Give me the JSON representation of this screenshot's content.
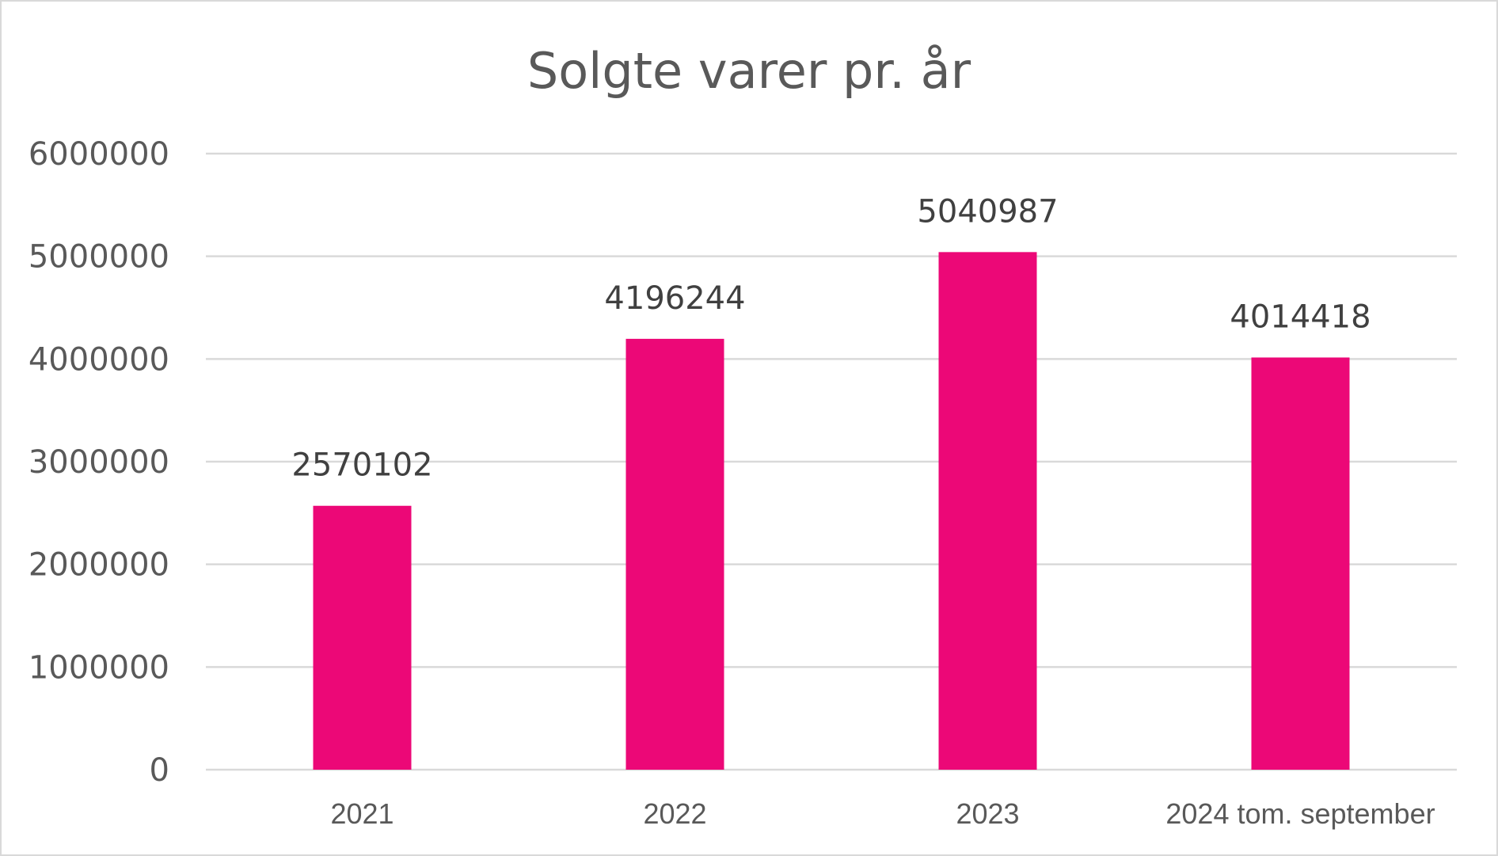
{
  "chart_data": {
    "type": "bar",
    "title": "Solgte varer pr. år",
    "categories": [
      "2021",
      "2022",
      "2023",
      "2024 tom. september"
    ],
    "values": [
      2570102,
      4196244,
      5040987,
      4014418
    ],
    "data_labels": [
      "2570102",
      "4196244",
      "5040987",
      "4014418"
    ],
    "yticks": [
      0,
      1000000,
      2000000,
      3000000,
      4000000,
      5000000,
      6000000
    ],
    "ytick_labels": [
      "0",
      "1000000",
      "2000000",
      "3000000",
      "4000000",
      "5000000",
      "6000000"
    ],
    "ylim": [
      0,
      6000000
    ],
    "xlabel": "",
    "ylabel": "",
    "grid": true,
    "legend": "none",
    "bar_color": "#EC0877",
    "gridline_color": "#D9D9D9"
  }
}
